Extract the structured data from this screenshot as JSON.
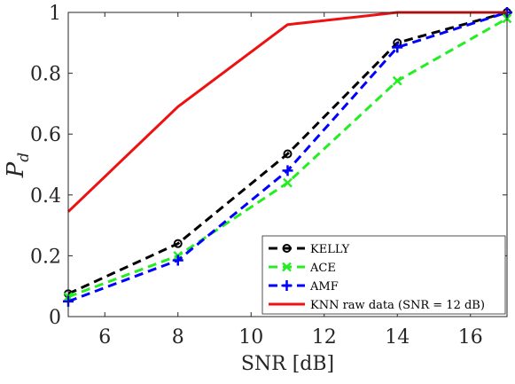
{
  "chart_data": {
    "type": "line",
    "xlabel": "SNR [dB]",
    "ylabel_main": "P",
    "ylabel_sub": "d",
    "xlim": [
      5,
      17
    ],
    "ylim": [
      0,
      1
    ],
    "xticks": [
      6,
      8,
      10,
      12,
      14,
      16
    ],
    "yticks": [
      0,
      0.2,
      0.4,
      0.6,
      0.8,
      1
    ],
    "ytick_labels": [
      "0",
      "0.2",
      "0.4",
      "0.6",
      "0.8",
      "1"
    ],
    "grid": false,
    "legend_position": "bottom-right",
    "series": [
      {
        "name": "KELLY",
        "color": "#000000",
        "dash": "dashed",
        "marker": "circle",
        "x": [
          5,
          8,
          11,
          14,
          17
        ],
        "y": [
          0.075,
          0.24,
          0.535,
          0.9,
          1.0
        ]
      },
      {
        "name": "ACE",
        "color": "#22ee22",
        "dash": "dashed",
        "marker": "x",
        "x": [
          5,
          8,
          11,
          14,
          17
        ],
        "y": [
          0.065,
          0.2,
          0.44,
          0.775,
          0.98
        ]
      },
      {
        "name": "AMF",
        "color": "#0000ff",
        "dash": "dashed",
        "marker": "plus",
        "x": [
          5,
          8,
          11,
          14,
          17
        ],
        "y": [
          0.05,
          0.185,
          0.48,
          0.885,
          1.0
        ]
      },
      {
        "name": "KNN raw data (SNR = 12 dB)",
        "color": "#ee1111",
        "dash": "solid",
        "marker": "none",
        "x": [
          5,
          8,
          11,
          14,
          17
        ],
        "y": [
          0.345,
          0.69,
          0.96,
          1.0,
          1.0
        ]
      }
    ]
  }
}
